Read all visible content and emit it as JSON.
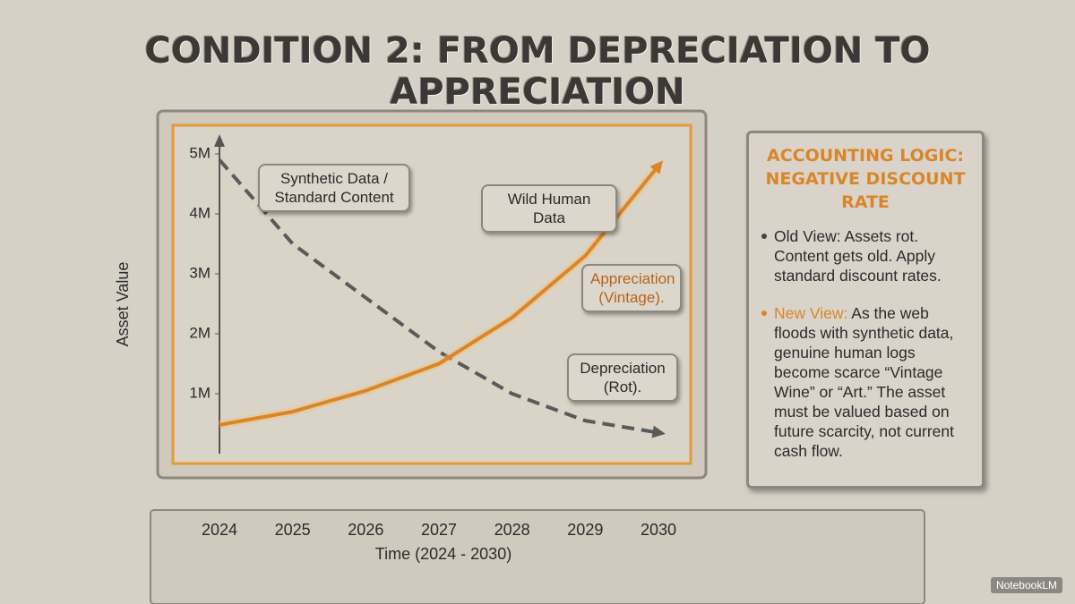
{
  "title": "CONDITION 2: FROM DEPRECIATION TO APPRECIATION",
  "chart_data": {
    "type": "line",
    "x": [
      2024,
      2025,
      2026,
      2027,
      2028,
      2029,
      2030
    ],
    "xlim": [
      2024,
      2030
    ],
    "ylim": [
      0,
      5200000
    ],
    "yticks": [
      {
        "value": 1000000,
        "label": "1M"
      },
      {
        "value": 2000000,
        "label": "2M"
      },
      {
        "value": 3000000,
        "label": "3M"
      },
      {
        "value": 4000000,
        "label": "4M"
      },
      {
        "value": 5000000,
        "label": "5M"
      }
    ],
    "x_label": "Time (2024 - 2030)",
    "y_label": "Asset Value",
    "series": [
      {
        "name": "Synthetic Data / Standard Content",
        "color": "#5a5a5a",
        "values": [
          4900000,
          3500000,
          2600000,
          1700000,
          1000000,
          550000,
          350000
        ]
      },
      {
        "name": "Wild Human Data",
        "color": "#d9862a",
        "values": [
          480000,
          700000,
          1050000,
          1500000,
          2270000,
          3300000,
          4800000
        ]
      }
    ],
    "annotations": [
      "Appreciation (Vintage).",
      "Depreciation (Rot)."
    ]
  },
  "panel": {
    "title": "ACCOUNTING LOGIC: NEGATIVE DISCOUNT RATE",
    "points": [
      {
        "text": "Old View: Assets rot. Content gets old. Apply standard discount rates."
      },
      {
        "label": "New View:",
        "text": "As the web floods with synthetic data, genuine human logs become scarce “Vintage Wine” or “Art.” The asset must be valued based on future scarcity, not current cash flow."
      }
    ]
  },
  "footer": "NotebookLM"
}
